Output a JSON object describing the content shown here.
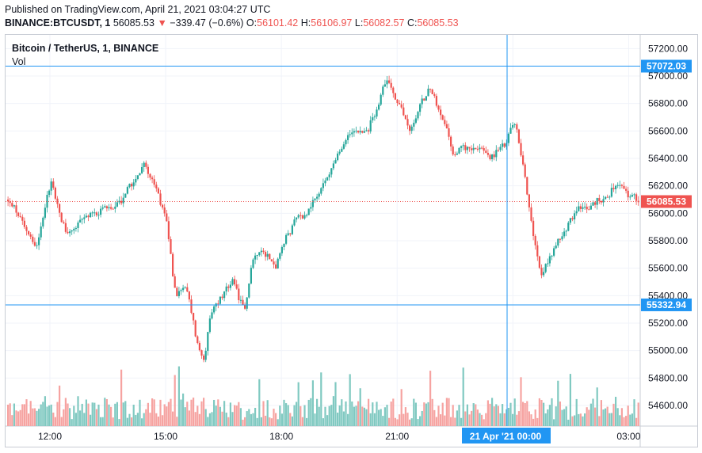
{
  "header": {
    "published": "Published on TradingView.com, April 21, 2021 03:04:27 UTC",
    "symbol": "BINANCE:BTCUSDT, 1",
    "last": "56085.53",
    "change_arrow": "▼",
    "change": "−339.47 (−0.6%)",
    "open_label": "O:",
    "open": "56101.42",
    "high_label": "H:",
    "high": "56106.97",
    "low_label": "L:",
    "low": "56082.57",
    "close_label": "C:",
    "close": "56085.53"
  },
  "legend": {
    "title": "Bitcoin / TetherUS, 1, BINANCE",
    "vol": "Vol"
  },
  "colors": {
    "up": "#26a69a",
    "down": "#ef5350",
    "vol_up": "#80c9c1",
    "vol_down": "#f6a3a1",
    "crosshair": "#2196f3",
    "grid": "#f0f3fa"
  },
  "chart_data": {
    "type": "candlestick",
    "y_ticks": [
      "57200.00",
      "57000.00",
      "56800.00",
      "56600.00",
      "56400.00",
      "56200.00",
      "56000.00",
      "55800.00",
      "55600.00",
      "55400.00",
      "55200.00",
      "55000.00",
      "54800.00",
      "54600.00"
    ],
    "y_tick_values": [
      57200,
      57000,
      56800,
      56600,
      56400,
      56200,
      56000,
      55800,
      55600,
      55400,
      55200,
      55000,
      54800,
      54600
    ],
    "x_ticks": [
      "12:00",
      "15:00",
      "18:00",
      "21:00",
      "00:00",
      "03:00"
    ],
    "x_tick_hours": [
      12,
      15,
      18,
      21,
      24,
      27
    ],
    "x_range_hours": [
      10.85,
      27.3
    ],
    "ylim": [
      54450,
      57300
    ],
    "crosshair_h1": {
      "value": 57072.03,
      "label": "57072.03"
    },
    "crosshair_h2": {
      "value": 55332.94,
      "label": "55332.94"
    },
    "crosshair_v": {
      "hour": 23.85,
      "label": "21 Apr '21   00:00"
    },
    "last_price": {
      "value": 56085.53,
      "label": "56085.53"
    },
    "path": [
      [
        10.85,
        56100
      ],
      [
        11.3,
        55900
      ],
      [
        11.6,
        55750
      ],
      [
        12.0,
        56300
      ],
      [
        12.15,
        56000
      ],
      [
        12.4,
        55850
      ],
      [
        12.8,
        55950
      ],
      [
        13.3,
        56050
      ],
      [
        13.6,
        56000
      ],
      [
        14.0,
        56200
      ],
      [
        14.4,
        56350
      ],
      [
        14.75,
        56150
      ],
      [
        15.0,
        55900
      ],
      [
        15.2,
        55350
      ],
      [
        15.45,
        55500
      ],
      [
        15.75,
        55050
      ],
      [
        15.95,
        54900
      ],
      [
        16.1,
        55250
      ],
      [
        16.4,
        55400
      ],
      [
        16.7,
        55500
      ],
      [
        17.0,
        55250
      ],
      [
        17.2,
        55700
      ],
      [
        17.5,
        55750
      ],
      [
        17.8,
        55600
      ],
      [
        18.1,
        55850
      ],
      [
        18.5,
        56000
      ],
      [
        18.8,
        56100
      ],
      [
        19.1,
        56250
      ],
      [
        19.5,
        56450
      ],
      [
        19.8,
        56650
      ],
      [
        20.2,
        56600
      ],
      [
        20.5,
        56850
      ],
      [
        20.75,
        57000
      ],
      [
        21.0,
        56750
      ],
      [
        21.3,
        56600
      ],
      [
        21.5,
        56750
      ],
      [
        21.8,
        56950
      ],
      [
        22.1,
        56700
      ],
      [
        22.4,
        56400
      ],
      [
        22.7,
        56500
      ],
      [
        23.0,
        56450
      ],
      [
        23.4,
        56400
      ],
      [
        23.7,
        56500
      ],
      [
        24.0,
        56700
      ],
      [
        24.2,
        56350
      ],
      [
        24.5,
        55800
      ],
      [
        24.7,
        55550
      ],
      [
        25.0,
        55750
      ],
      [
        25.4,
        55950
      ],
      [
        25.8,
        56050
      ],
      [
        26.2,
        56100
      ],
      [
        26.6,
        56200
      ],
      [
        27.1,
        56085
      ]
    ],
    "vol_label": "Vol"
  }
}
